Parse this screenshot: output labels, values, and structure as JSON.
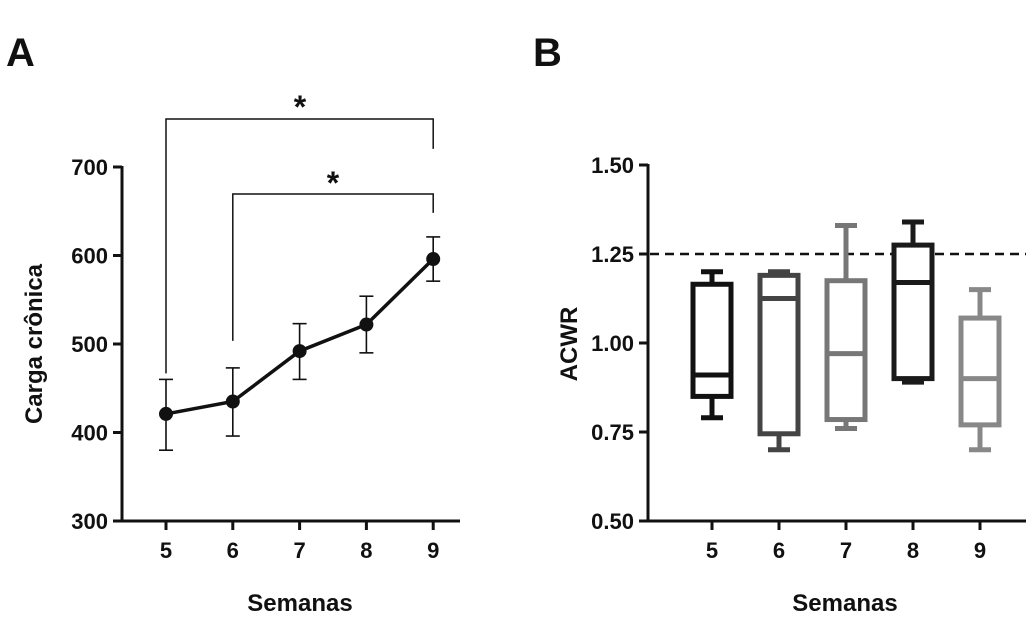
{
  "chart_data": [
    {
      "panel_label": "A",
      "type": "line",
      "xlabel": "Semanas",
      "ylabel": "Carga crônica",
      "x": [
        5,
        6,
        7,
        8,
        9
      ],
      "categories": [
        "5",
        "6",
        "7",
        "8",
        "9"
      ],
      "yticks": [
        "300",
        "400",
        "500",
        "600",
        "700"
      ],
      "ylim": [
        300,
        700
      ],
      "series": [
        {
          "name": "Carga crônica",
          "values": [
            421,
            435,
            492,
            522,
            596
          ],
          "error_low": [
            380,
            396,
            460,
            490,
            571
          ],
          "error_high": [
            460,
            473,
            523,
            554,
            621
          ]
        }
      ],
      "annotations": [
        {
          "text": "*",
          "from": 5,
          "to": 9
        },
        {
          "text": "*",
          "from": 6,
          "to": 9
        }
      ],
      "color": "#000000"
    },
    {
      "panel_label": "B",
      "type": "box",
      "xlabel": "Semanas",
      "ylabel": "ACWR",
      "categories": [
        "5",
        "6",
        "7",
        "8",
        "9"
      ],
      "yticks": [
        "0.50",
        "0.75",
        "1.00",
        "1.25",
        "1.50"
      ],
      "ylim": [
        0.5,
        1.5
      ],
      "reference_line": 1.25,
      "boxes": [
        {
          "min": 0.79,
          "q1": 0.85,
          "median": 0.91,
          "q3": 1.165,
          "max": 1.2,
          "color": "#111111"
        },
        {
          "min": 0.7,
          "q1": 0.745,
          "median": 1.125,
          "q3": 1.19,
          "max": 1.2,
          "color": "#444444"
        },
        {
          "min": 0.76,
          "q1": 0.785,
          "median": 0.97,
          "q3": 1.175,
          "max": 1.33,
          "color": "#777777"
        },
        {
          "min": 0.89,
          "q1": 0.9,
          "median": 1.17,
          "q3": 1.275,
          "max": 1.34,
          "color": "#1a1a1a"
        },
        {
          "min": 0.7,
          "q1": 0.77,
          "median": 0.9,
          "q3": 1.07,
          "max": 1.15,
          "color": "#888888"
        }
      ]
    }
  ]
}
